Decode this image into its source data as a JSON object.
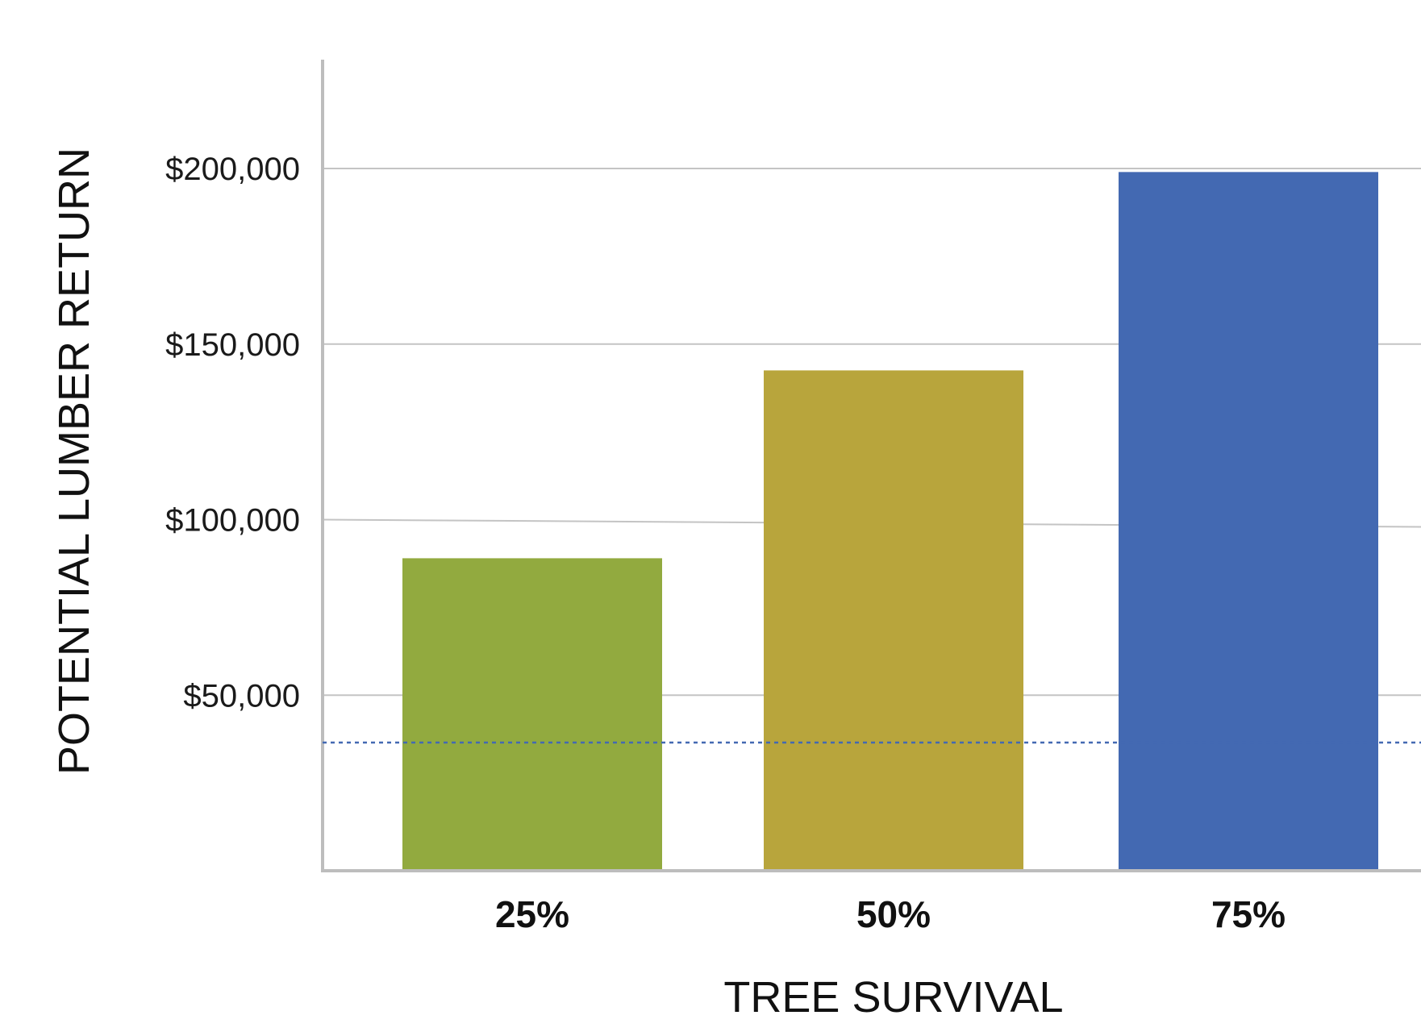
{
  "chart_data": {
    "type": "bar",
    "title": "",
    "xlabel": "TREE SURVIVAL",
    "ylabel": "POTENTIAL LUMBER RETURN",
    "categories": [
      "25%",
      "50%",
      "75%"
    ],
    "values": [
      89000,
      142500,
      199000
    ],
    "bar_colors": [
      "#92AA3F",
      "#B8A53C",
      "#4369B2"
    ],
    "ylim": [
      0,
      230000
    ],
    "yticks": [
      50000,
      100000,
      150000,
      200000
    ],
    "ytick_labels": [
      "$50,000",
      "$100,000",
      "$150,000",
      "$200,000"
    ],
    "reference_line": {
      "value": 36500,
      "style": "dotted",
      "color": "#4369B2"
    },
    "grid": true,
    "legend": "none"
  }
}
